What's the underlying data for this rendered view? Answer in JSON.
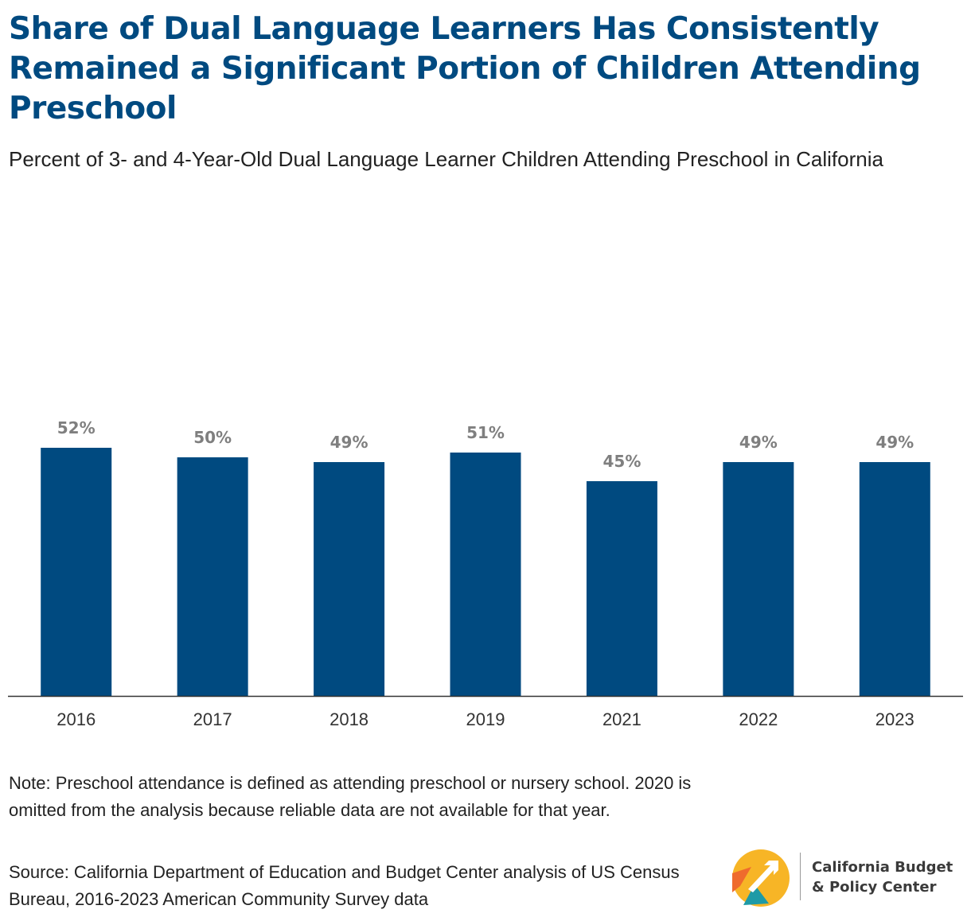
{
  "header": {
    "title": "Share of Dual Language Learners Has Consistently Remained a Significant Portion of Children Attending Preschool",
    "subtitle": "Percent of 3- and 4-Year-Old Dual Language Learner Children Attending Preschool in California"
  },
  "chart_data": {
    "type": "bar",
    "title": "Share of Dual Language Learners Has Consistently Remained a Significant Portion of Children Attending Preschool",
    "subtitle": "Percent of 3- and 4-Year-Old Dual Language Learner Children Attending Preschool in California",
    "categories": [
      "2016",
      "2017",
      "2018",
      "2019",
      "2021",
      "2022",
      "2023"
    ],
    "values": [
      52,
      50,
      49,
      51,
      45,
      49,
      49
    ],
    "value_labels": [
      "52%",
      "50%",
      "49%",
      "51%",
      "45%",
      "49%",
      "49%"
    ],
    "ylim": [
      0,
      100
    ],
    "grid": false,
    "bar_color": "#004a80",
    "label_color": "#7f7f7f"
  },
  "footer": {
    "note": "Note: Preschool attendance is defined as attending preschool or nursery school. 2020 is omitted from the analysis because reliable data are not available for that year.",
    "source": "Source: California Department of Education and Budget Center analysis of US Census Bureau, 2016-2023 American Community Survey data"
  },
  "logo": {
    "line1": "California Budget",
    "line2": "& Policy Center",
    "colors": {
      "yellow": "#f7b526",
      "orange": "#ef6b2d",
      "teal": "#1e9aa6"
    }
  }
}
